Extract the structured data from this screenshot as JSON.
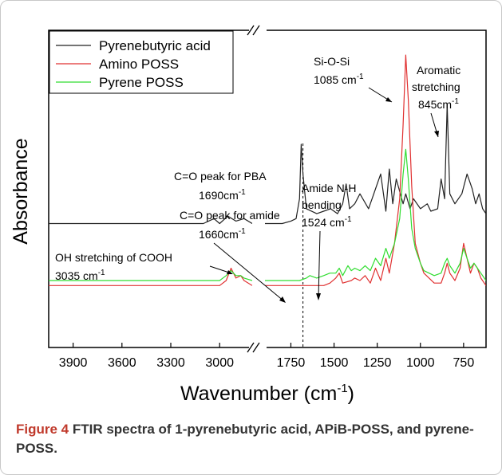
{
  "chart_data": {
    "type": "line",
    "title": "",
    "xlabel": "Wavenumber (cm-1)",
    "xlabel_main": "Wavenumber (cm",
    "xlabel_sup": "-1",
    "xlabel_close": ")",
    "ylabel": "Absorbance",
    "x_axis": "reversed, broken between 3000 and 1750",
    "xticks_left": [
      3900,
      3600,
      3300,
      3000
    ],
    "xticks_right": [
      1750,
      1500,
      1250,
      1000,
      750
    ],
    "legend": "top-left",
    "series": [
      {
        "name": "Pyrenebutyric acid",
        "color": "#222222",
        "x": [
          4050,
          3900,
          3600,
          3300,
          3100,
          3035,
          3000,
          2950,
          2900,
          2850,
          2800,
          1900,
          1800,
          1750,
          1720,
          1700,
          1690,
          1680,
          1660,
          1600,
          1560,
          1520,
          1480,
          1450,
          1430,
          1410,
          1380,
          1350,
          1300,
          1280,
          1260,
          1230,
          1200,
          1180,
          1160,
          1140,
          1100,
          1085,
          1060,
          1040,
          1000,
          960,
          940,
          900,
          880,
          860,
          845,
          830,
          800,
          760,
          730,
          720,
          700,
          680,
          660,
          640,
          620
        ],
        "y": [
          0.5,
          0.5,
          0.5,
          0.5,
          0.5,
          0.52,
          0.5,
          0.53,
          0.51,
          0.52,
          0.5,
          0.5,
          0.5,
          0.51,
          0.52,
          0.6,
          0.82,
          0.7,
          0.56,
          0.54,
          0.55,
          0.56,
          0.54,
          0.58,
          0.66,
          0.56,
          0.58,
          0.62,
          0.56,
          0.6,
          0.64,
          0.7,
          0.55,
          0.72,
          0.58,
          0.68,
          0.58,
          0.62,
          0.56,
          0.6,
          0.56,
          0.58,
          0.55,
          0.56,
          0.68,
          0.6,
          0.98,
          0.62,
          0.58,
          0.62,
          0.7,
          0.68,
          0.64,
          0.58,
          0.62,
          0.56,
          0.54
        ]
      },
      {
        "name": "Amino POSS",
        "color": "#e03030",
        "x": [
          4050,
          3900,
          3600,
          3300,
          3000,
          2960,
          2930,
          2900,
          2870,
          2850,
          2800,
          1900,
          1800,
          1750,
          1700,
          1660,
          1600,
          1560,
          1524,
          1490,
          1470,
          1450,
          1400,
          1380,
          1350,
          1320,
          1290,
          1260,
          1230,
          1200,
          1180,
          1150,
          1120,
          1100,
          1085,
          1070,
          1050,
          1030,
          1000,
          980,
          950,
          920,
          880,
          860,
          845,
          830,
          800,
          770,
          750,
          730,
          710,
          690,
          670,
          650,
          630,
          620
        ],
        "y": [
          0.25,
          0.25,
          0.25,
          0.25,
          0.25,
          0.27,
          0.32,
          0.28,
          0.29,
          0.27,
          0.25,
          0.25,
          0.25,
          0.25,
          0.25,
          0.25,
          0.25,
          0.25,
          0.26,
          0.28,
          0.3,
          0.26,
          0.27,
          0.28,
          0.27,
          0.29,
          0.26,
          0.32,
          0.27,
          0.36,
          0.3,
          0.42,
          0.6,
          0.9,
          1.18,
          1.0,
          0.65,
          0.42,
          0.34,
          0.3,
          0.28,
          0.26,
          0.26,
          0.3,
          0.34,
          0.3,
          0.27,
          0.32,
          0.42,
          0.36,
          0.3,
          0.34,
          0.32,
          0.28,
          0.26,
          0.25
        ]
      },
      {
        "name": "Pyrene POSS",
        "color": "#30dd30",
        "x": [
          4050,
          3900,
          3600,
          3300,
          3000,
          2960,
          2930,
          2900,
          2870,
          2850,
          2800,
          1900,
          1800,
          1750,
          1700,
          1660,
          1640,
          1600,
          1560,
          1524,
          1490,
          1470,
          1450,
          1420,
          1400,
          1380,
          1350,
          1320,
          1290,
          1260,
          1230,
          1200,
          1180,
          1150,
          1120,
          1100,
          1085,
          1070,
          1050,
          1030,
          1000,
          980,
          950,
          920,
          880,
          860,
          845,
          830,
          800,
          770,
          750,
          730,
          710,
          690,
          670,
          650,
          630,
          620
        ],
        "y": [
          0.27,
          0.27,
          0.27,
          0.27,
          0.27,
          0.29,
          0.31,
          0.29,
          0.29,
          0.28,
          0.27,
          0.27,
          0.27,
          0.27,
          0.27,
          0.28,
          0.29,
          0.28,
          0.29,
          0.3,
          0.3,
          0.32,
          0.29,
          0.33,
          0.31,
          0.32,
          0.31,
          0.33,
          0.31,
          0.36,
          0.33,
          0.4,
          0.36,
          0.42,
          0.52,
          0.7,
          0.8,
          0.68,
          0.48,
          0.4,
          0.34,
          0.31,
          0.3,
          0.29,
          0.3,
          0.34,
          0.36,
          0.33,
          0.3,
          0.34,
          0.4,
          0.36,
          0.32,
          0.34,
          0.32,
          0.3,
          0.28,
          0.27
        ]
      }
    ],
    "dashed_line_x": 1680,
    "annotations": [
      {
        "id": "sio",
        "lines": [
          "Si-O-Si",
          "1085 cm",
          "-1"
        ]
      },
      {
        "id": "arom",
        "lines": [
          "Aromatic",
          "stretching",
          "845cm",
          "-1"
        ]
      },
      {
        "id": "co_pba",
        "lines": [
          "C=O peak for PBA",
          "1690cm",
          "-1"
        ]
      },
      {
        "id": "amide_nh",
        "lines": [
          "Amide N-H",
          "bending",
          "1524 cm",
          "-1"
        ]
      },
      {
        "id": "co_amide",
        "lines": [
          "C=O peak for amide",
          "1660cm",
          "-1"
        ]
      },
      {
        "id": "oh",
        "lines": [
          "OH stretching of COOH",
          "3035 cm",
          "-1"
        ]
      }
    ]
  },
  "caption": {
    "label": "Figure 4",
    "text": " FTIR spectra of 1-pyrenebutyric acid, APiB-POSS, and pyrene-POSS."
  }
}
